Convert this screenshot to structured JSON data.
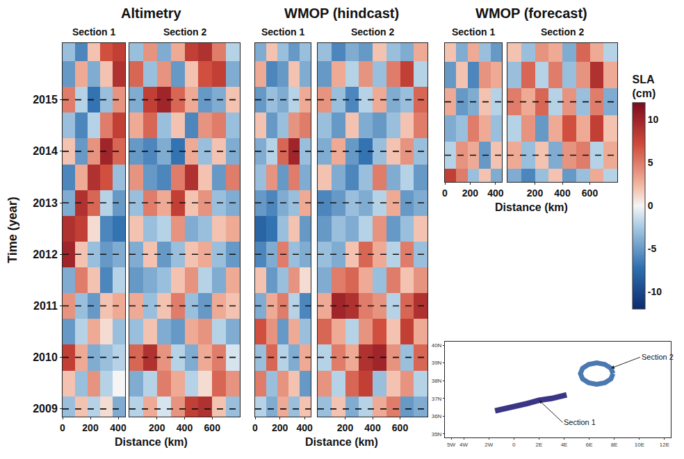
{
  "figure": {
    "y_label": "Time (year)",
    "x_label": "Distance (km)",
    "panels": [
      "Altimetry",
      "WMOP (hindcast)",
      "WMOP (forecast)"
    ],
    "colorbar": {
      "title": "SLA (cm)",
      "range": [
        -12,
        12
      ],
      "ticks": [
        -10,
        -5,
        0,
        5,
        10
      ]
    }
  },
  "chart_data": [
    {
      "type": "heatmap",
      "panel": "Altimetry",
      "title": "Section 1",
      "x": [
        45,
        135,
        225,
        315,
        405
      ],
      "y": [
        2009,
        2009.5,
        2010,
        2010.5,
        2011,
        2011.5,
        2012,
        2012.5,
        2013,
        2013.5,
        2014,
        2014.5,
        2015,
        2015.5,
        2016
      ],
      "z": [
        [
          -3,
          2,
          -2,
          1,
          -4
        ],
        [
          2,
          -3,
          4,
          -2,
          0
        ],
        [
          8,
          3,
          -4,
          -3,
          -2
        ],
        [
          -5,
          -2,
          3,
          1,
          -3
        ],
        [
          4,
          -3,
          -5,
          2,
          3
        ],
        [
          -4,
          5,
          2,
          -6,
          -2
        ],
        [
          10,
          2,
          -3,
          -5,
          -4
        ],
        [
          9,
          8,
          1,
          -6,
          -7
        ],
        [
          -4,
          9,
          6,
          -2,
          -5
        ],
        [
          -6,
          3,
          9,
          7,
          -3
        ],
        [
          2,
          -5,
          4,
          10,
          6
        ],
        [
          -3,
          -6,
          -2,
          5,
          8
        ],
        [
          5,
          -2,
          -7,
          -3,
          4
        ],
        [
          -5,
          3,
          -4,
          2,
          9
        ],
        [
          -3,
          -6,
          2,
          7,
          8
        ]
      ],
      "xlim": [
        0,
        450
      ],
      "xticks": [
        0,
        200,
        400
      ],
      "ylim": [
        2008.85,
        2016.1
      ],
      "yticks": [
        2009,
        2010,
        2011,
        2012,
        2013,
        2014,
        2015
      ],
      "grid": true
    },
    {
      "type": "heatmap",
      "panel": "Altimetry",
      "title": "Section 2",
      "x": [
        50,
        150,
        250,
        350,
        450,
        550,
        650,
        750
      ],
      "y": [
        2009,
        2009.5,
        2010,
        2010.5,
        2011,
        2011.5,
        2012,
        2012.5,
        2013,
        2013.5,
        2014,
        2014.5,
        2015,
        2015.5,
        2016
      ],
      "z": [
        [
          -2,
          3,
          -1,
          4,
          8,
          9,
          2,
          -3
        ],
        [
          -4,
          -2,
          5,
          3,
          -2,
          1,
          6,
          4
        ],
        [
          6,
          9,
          4,
          -2,
          -4,
          3,
          5,
          -1
        ],
        [
          -3,
          2,
          -4,
          -5,
          3,
          4,
          -2,
          -4
        ],
        [
          3,
          -3,
          2,
          5,
          -3,
          -5,
          3,
          2
        ],
        [
          -5,
          -4,
          -3,
          2,
          4,
          -2,
          -4,
          3
        ],
        [
          -4,
          2,
          -5,
          -3,
          2,
          3,
          -3,
          -5
        ],
        [
          2,
          -3,
          -2,
          4,
          -4,
          -3,
          2,
          3
        ],
        [
          -3,
          5,
          3,
          8,
          2,
          4,
          -3,
          -4
        ],
        [
          4,
          -5,
          -6,
          5,
          9,
          2,
          -5,
          5
        ],
        [
          -5,
          -6,
          -4,
          -7,
          3,
          -3,
          2,
          -4
        ],
        [
          3,
          6,
          -3,
          2,
          -6,
          4,
          5,
          -3
        ],
        [
          -4,
          8,
          10,
          6,
          3,
          -5,
          -4,
          2
        ],
        [
          6,
          -3,
          4,
          -5,
          2,
          7,
          8,
          -4
        ],
        [
          -3,
          4,
          -4,
          3,
          8,
          9,
          5,
          -2
        ]
      ],
      "xlim": [
        0,
        800
      ],
      "xticks": [
        200,
        400,
        600
      ],
      "ylim": [
        2008.85,
        2016.1
      ],
      "yticks": [
        2009,
        2010,
        2011,
        2012,
        2013,
        2014,
        2015
      ],
      "grid": true,
      "tick_labels": "x"
    },
    {
      "type": "heatmap",
      "panel": "WMOP (hindcast)",
      "title": "Section 1",
      "x": [
        45,
        135,
        225,
        315,
        405
      ],
      "y": [
        2009,
        2009.5,
        2010,
        2010.5,
        2011,
        2011.5,
        2012,
        2012.5,
        2013,
        2013.5,
        2014,
        2014.5,
        2015,
        2015.5,
        2016
      ],
      "z": [
        [
          -2,
          -4,
          3,
          -3,
          2
        ],
        [
          5,
          -3,
          4,
          2,
          -5
        ],
        [
          -3,
          6,
          -2,
          -4,
          3
        ],
        [
          7,
          4,
          -5,
          3,
          -3
        ],
        [
          -4,
          3,
          5,
          -2,
          -6
        ],
        [
          2,
          -5,
          -3,
          4,
          1
        ],
        [
          -6,
          -4,
          5,
          -3,
          -4
        ],
        [
          -8,
          -7,
          -3,
          2,
          -5
        ],
        [
          -5,
          -6,
          -4,
          -3,
          3
        ],
        [
          -3,
          4,
          -5,
          5,
          -4
        ],
        [
          -4,
          -2,
          6,
          10,
          -3
        ],
        [
          2,
          -5,
          -3,
          4,
          5
        ],
        [
          -5,
          -3,
          -4,
          -2,
          3
        ],
        [
          3,
          -6,
          -5,
          2,
          -4
        ],
        [
          -4,
          2,
          -3,
          -5,
          -3
        ]
      ],
      "xlim": [
        0,
        450
      ],
      "xticks": [
        0,
        200,
        400
      ],
      "ylim": [
        2008.85,
        2016.1
      ],
      "yticks": [
        2009,
        2010,
        2011,
        2012,
        2013,
        2014,
        2015
      ],
      "grid": true,
      "tick_labels": "x"
    },
    {
      "type": "heatmap",
      "panel": "WMOP (hindcast)",
      "title": "Section 2",
      "x": [
        50,
        150,
        250,
        350,
        450,
        550,
        650,
        750
      ],
      "y": [
        2009,
        2009.5,
        2010,
        2010.5,
        2011,
        2011.5,
        2012,
        2012.5,
        2013,
        2013.5,
        2014,
        2014.5,
        2015,
        2015.5,
        2016
      ],
      "z": [
        [
          -3,
          2,
          -4,
          -2,
          3,
          5,
          -5,
          -4
        ],
        [
          4,
          -2,
          6,
          8,
          -3,
          2,
          4,
          -2
        ],
        [
          -2,
          5,
          3,
          9,
          10,
          4,
          -3,
          6
        ],
        [
          6,
          3,
          -2,
          4,
          7,
          2,
          8,
          3
        ],
        [
          3,
          10,
          9,
          5,
          4,
          -2,
          6,
          9
        ],
        [
          -4,
          5,
          6,
          3,
          -3,
          5,
          2,
          4
        ],
        [
          -3,
          -4,
          2,
          6,
          3,
          -2,
          5,
          -3
        ],
        [
          -5,
          -3,
          -4,
          -2,
          4,
          -5,
          -3,
          2
        ],
        [
          -6,
          -5,
          -3,
          -4,
          -2,
          3,
          -5,
          -4
        ],
        [
          2,
          -4,
          -6,
          -3,
          5,
          -4,
          -2,
          -5
        ],
        [
          -4,
          3,
          -5,
          -7,
          -3,
          2,
          4,
          -3
        ],
        [
          -3,
          -5,
          2,
          -4,
          -5,
          -3,
          2,
          5
        ],
        [
          4,
          -3,
          -6,
          -2,
          3,
          -4,
          -3,
          6
        ],
        [
          -5,
          3,
          -2,
          4,
          -3,
          5,
          8,
          -2
        ],
        [
          -3,
          -6,
          -4,
          -5,
          2,
          -3,
          -4,
          3
        ]
      ],
      "xlim": [
        0,
        800
      ],
      "xticks": [
        200,
        400,
        600
      ],
      "ylim": [
        2008.85,
        2016.1
      ],
      "yticks": [
        2009,
        2010,
        2011,
        2012,
        2013,
        2014,
        2015
      ],
      "grid": true,
      "tick_labels": "x"
    },
    {
      "type": "heatmap",
      "panel": "WMOP (forecast)",
      "title": "Section 1",
      "x": [
        45,
        135,
        225,
        315,
        405
      ],
      "y": [
        2013.5,
        2014,
        2014.5,
        2015,
        2015.5,
        2016
      ],
      "z": [
        [
          8,
          5,
          -3,
          2,
          -4
        ],
        [
          -2,
          4,
          3,
          -5,
          2
        ],
        [
          -4,
          -3,
          5,
          3,
          -3
        ],
        [
          3,
          -5,
          -4,
          2,
          -2
        ],
        [
          -5,
          2,
          -6,
          4,
          3
        ],
        [
          2,
          -4,
          3,
          -3,
          -5
        ]
      ],
      "xlim": [
        0,
        450
      ],
      "xticks": [
        0,
        200,
        400
      ],
      "ylim": [
        2013.5,
        2016.1
      ],
      "yticks": [
        2014,
        2015
      ],
      "grid": true,
      "tick_labels": "x"
    },
    {
      "type": "heatmap",
      "panel": "WMOP (forecast)",
      "title": "Section 2",
      "x": [
        50,
        150,
        250,
        350,
        450,
        550,
        650,
        750
      ],
      "y": [
        2013.5,
        2014,
        2014.5,
        2015,
        2015.5,
        2016
      ],
      "z": [
        [
          -4,
          -6,
          -3,
          2,
          -5,
          -3,
          3,
          -2
        ],
        [
          3,
          -3,
          2,
          -4,
          4,
          5,
          -2,
          3
        ],
        [
          -2,
          4,
          -5,
          3,
          7,
          3,
          8,
          2
        ],
        [
          5,
          3,
          6,
          -2,
          4,
          -3,
          5,
          -4
        ],
        [
          -3,
          6,
          -2,
          5,
          -3,
          4,
          9,
          3
        ],
        [
          2,
          -3,
          4,
          3,
          -4,
          6,
          3,
          -2
        ]
      ],
      "xlim": [
        0,
        800
      ],
      "xticks": [
        200,
        400,
        600
      ],
      "ylim": [
        2013.5,
        2016.1
      ],
      "yticks": [
        2014,
        2015
      ],
      "grid": true,
      "tick_labels": "x"
    },
    {
      "type": "map",
      "series": [
        {
          "name": "Section 1",
          "color": "#3b3585",
          "lon": [
            -1.5,
            0,
            1,
            2,
            3,
            4.2
          ],
          "lat": [
            36.3,
            36.5,
            36.7,
            36.9,
            37.0,
            37.2
          ]
        },
        {
          "name": "Section 2",
          "color": "#4a78b0",
          "lon": [
            7.9,
            7.73,
            7.25,
            6.6,
            5.95,
            5.47,
            5.3,
            5.47,
            5.95,
            6.6,
            7.25,
            7.73,
            7.9
          ],
          "lat": [
            38.4,
            38.7,
            38.92,
            39.0,
            38.92,
            38.7,
            38.4,
            38.1,
            37.88,
            37.8,
            37.88,
            38.1,
            38.4
          ]
        }
      ],
      "xlim": [
        -5.5,
        12.5
      ],
      "xticks": [
        {
          "value": -5,
          "label": "5W"
        },
        {
          "value": -4,
          "label": "4W"
        },
        {
          "value": -2,
          "label": "2W"
        },
        0,
        {
          "value": 2,
          "label": "2E"
        },
        {
          "value": 4,
          "label": "4E"
        },
        {
          "value": 6,
          "label": "6E"
        },
        {
          "value": 8,
          "label": "8E"
        },
        {
          "value": 10,
          "label": "10E"
        },
        {
          "value": 12,
          "label": "12E"
        }
      ],
      "ylim": [
        34.8,
        40.2
      ],
      "yticks": [
        {
          "value": 35,
          "label": "35N"
        },
        {
          "value": 36,
          "label": "36N"
        },
        {
          "value": 37,
          "label": "37N"
        },
        {
          "value": 38,
          "label": "38N"
        },
        {
          "value": 39,
          "label": "39N"
        },
        {
          "value": 40,
          "label": "40N"
        }
      ]
    }
  ]
}
